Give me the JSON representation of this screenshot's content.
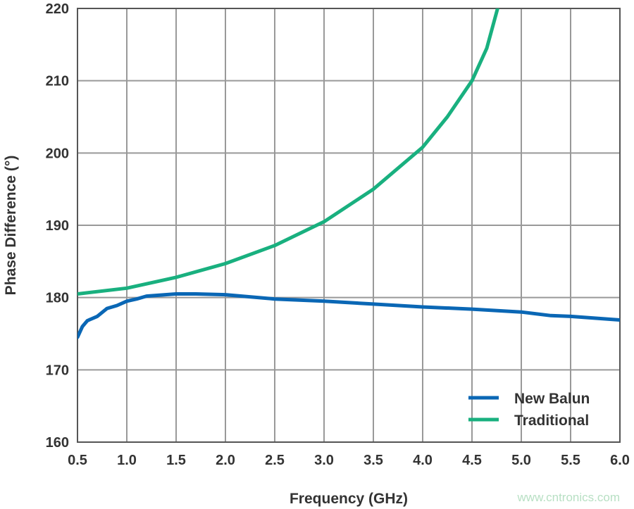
{
  "chart_data": {
    "type": "line",
    "title": "",
    "xlabel": "Frequency (GHz)",
    "ylabel": "Phase Difference (°)",
    "xlim": [
      0.5,
      6.0
    ],
    "ylim": [
      160,
      220
    ],
    "xticks": [
      "0.5",
      "1.0",
      "1.5",
      "2.0",
      "2.5",
      "3.0",
      "3.5",
      "4.0",
      "4.5",
      "5.0",
      "5.5",
      "6.0"
    ],
    "yticks": [
      "160",
      "170",
      "180",
      "190",
      "200",
      "210",
      "220"
    ],
    "grid": true,
    "legend_position": "bottom-right",
    "series": [
      {
        "name": "New Balun",
        "color": "#0a67b5",
        "x": [
          0.5,
          0.55,
          0.6,
          0.7,
          0.8,
          0.9,
          1.0,
          1.1,
          1.2,
          1.5,
          1.7,
          2.0,
          2.5,
          3.0,
          3.5,
          4.0,
          4.5,
          5.0,
          5.3,
          5.5,
          6.0
        ],
        "y": [
          174.5,
          176,
          176.8,
          177.4,
          178.5,
          178.9,
          179.5,
          179.8,
          180.2,
          180.5,
          180.5,
          180.4,
          179.8,
          179.5,
          179.1,
          178.7,
          178.4,
          178.0,
          177.5,
          177.4,
          176.9
        ]
      },
      {
        "name": "Traditional",
        "color": "#19b07f",
        "x": [
          0.5,
          1.0,
          1.5,
          2.0,
          2.5,
          3.0,
          3.5,
          4.0,
          4.25,
          4.5,
          4.65,
          4.76
        ],
        "y": [
          180.5,
          181.3,
          182.8,
          184.7,
          187.2,
          190.5,
          195.0,
          200.8,
          205.0,
          210.0,
          214.5,
          220.0
        ]
      }
    ]
  },
  "watermark": "www.cntronics.com"
}
